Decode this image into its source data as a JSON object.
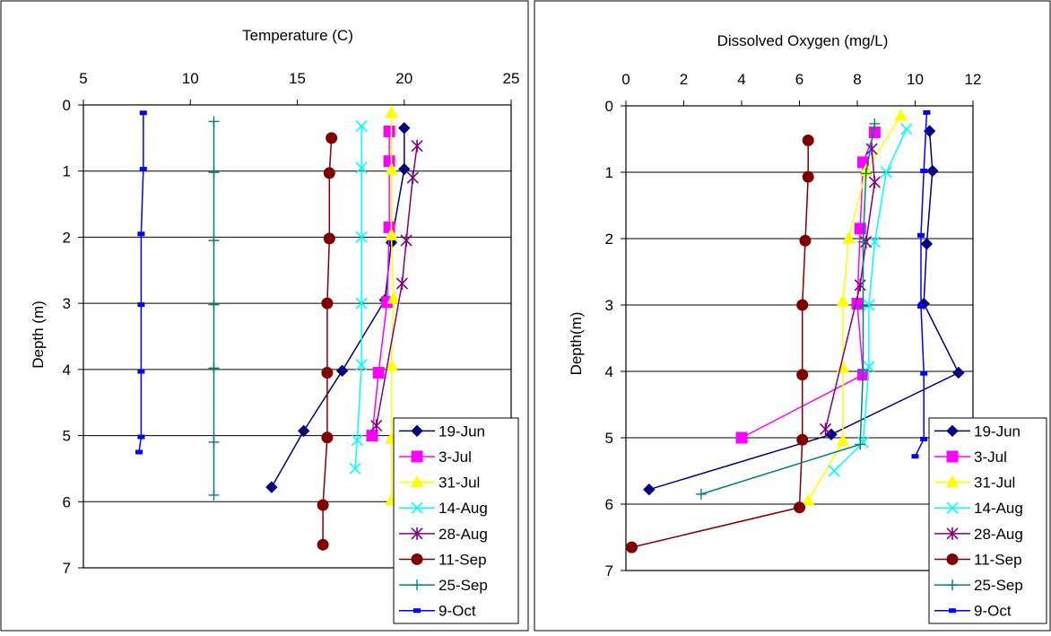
{
  "chart_data": [
    {
      "type": "line",
      "title": "Temperature (C)",
      "xlabel": "",
      "ylabel": "Depth (m)",
      "xlim": [
        5,
        25
      ],
      "ylim": [
        0,
        7
      ],
      "xticks": [
        5,
        10,
        15,
        20,
        25
      ],
      "yticks": [
        0,
        1,
        2,
        3,
        4,
        5,
        6,
        7
      ],
      "y_inverted": true,
      "x_axis_position": "top",
      "grid": "horizontal",
      "legend_position": "bottom-right",
      "series": [
        {
          "name": "19-Jun",
          "color": "#000080",
          "marker": "diamond",
          "points": [
            [
              20.0,
              0.35
            ],
            [
              20.0,
              0.97
            ],
            [
              19.4,
              2.08
            ],
            [
              19.1,
              2.95
            ],
            [
              17.1,
              4.02
            ],
            [
              15.3,
              4.93
            ],
            [
              13.8,
              5.78
            ]
          ]
        },
        {
          "name": "3-Jul",
          "color": "#ff00ff",
          "marker": "square",
          "points": [
            [
              19.3,
              0.4
            ],
            [
              19.3,
              0.85
            ],
            [
              19.3,
              1.85
            ],
            [
              19.2,
              2.98
            ],
            [
              18.8,
              4.05
            ],
            [
              18.5,
              5.0
            ]
          ]
        },
        {
          "name": "31-Jul",
          "color": "#ffff00",
          "marker": "triangle",
          "points": [
            [
              19.4,
              0.12
            ],
            [
              19.4,
              0.98
            ],
            [
              19.4,
              1.97
            ],
            [
              19.5,
              2.93
            ],
            [
              19.4,
              3.95
            ],
            [
              19.4,
              5.05
            ],
            [
              19.4,
              5.98
            ]
          ]
        },
        {
          "name": "14-Aug",
          "color": "#00ffff",
          "marker": "x",
          "points": [
            [
              18.0,
              0.32
            ],
            [
              18.0,
              0.95
            ],
            [
              18.0,
              2.0
            ],
            [
              18.0,
              3.0
            ],
            [
              18.0,
              3.93
            ],
            [
              17.8,
              5.07
            ],
            [
              17.7,
              5.5
            ]
          ]
        },
        {
          "name": "28-Aug",
          "color": "#800080",
          "marker": "star",
          "points": [
            [
              20.6,
              0.62
            ],
            [
              20.4,
              1.1
            ],
            [
              20.1,
              2.05
            ],
            [
              19.9,
              2.7
            ],
            [
              18.7,
              4.85
            ]
          ]
        },
        {
          "name": "11-Sep",
          "color": "#800000",
          "marker": "circle",
          "points": [
            [
              16.6,
              0.5
            ],
            [
              16.5,
              1.03
            ],
            [
              16.5,
              2.02
            ],
            [
              16.4,
              3.0
            ],
            [
              16.4,
              4.05
            ],
            [
              16.4,
              5.03
            ],
            [
              16.2,
              6.05
            ],
            [
              16.2,
              6.65
            ]
          ]
        },
        {
          "name": "25-Sep",
          "color": "#008080",
          "marker": "plus",
          "points": [
            [
              11.1,
              0.25
            ],
            [
              11.1,
              1.02
            ],
            [
              11.1,
              2.05
            ],
            [
              11.1,
              3.02
            ],
            [
              11.1,
              3.98
            ],
            [
              11.1,
              5.1
            ],
            [
              11.1,
              5.9
            ]
          ]
        },
        {
          "name": "9-Oct",
          "color": "#0000ff",
          "marker": "dash",
          "points": [
            [
              7.8,
              0.12
            ],
            [
              7.8,
              0.97
            ],
            [
              7.7,
              1.95
            ],
            [
              7.7,
              3.02
            ],
            [
              7.7,
              4.03
            ],
            [
              7.7,
              5.02
            ],
            [
              7.6,
              5.25
            ]
          ]
        }
      ]
    },
    {
      "type": "line",
      "title": "Dissolved Oxygen (mg/L)",
      "xlabel": "",
      "ylabel": "Depth(m)",
      "xlim": [
        0,
        12
      ],
      "ylim": [
        0,
        7
      ],
      "xticks": [
        0,
        2,
        4,
        6,
        8,
        10,
        12
      ],
      "yticks": [
        0,
        1,
        2,
        3,
        4,
        5,
        6,
        7
      ],
      "y_inverted": true,
      "x_axis_position": "top",
      "grid": "horizontal",
      "legend_position": "bottom-right",
      "series": [
        {
          "name": "19-Jun",
          "color": "#000080",
          "marker": "diamond",
          "points": [
            [
              10.5,
              0.38
            ],
            [
              10.6,
              0.98
            ],
            [
              10.4,
              2.08
            ],
            [
              10.3,
              2.98
            ],
            [
              11.5,
              4.02
            ],
            [
              7.1,
              4.95
            ],
            [
              0.8,
              5.78
            ]
          ]
        },
        {
          "name": "3-Jul",
          "color": "#ff00ff",
          "marker": "square",
          "points": [
            [
              8.6,
              0.4
            ],
            [
              8.2,
              0.85
            ],
            [
              8.1,
              1.85
            ],
            [
              8.0,
              2.98
            ],
            [
              8.2,
              4.05
            ],
            [
              4.0,
              5.0
            ]
          ]
        },
        {
          "name": "31-Jul",
          "color": "#ffff00",
          "marker": "triangle",
          "points": [
            [
              9.5,
              0.15
            ],
            [
              8.3,
              0.98
            ],
            [
              7.7,
              2.0
            ],
            [
              7.5,
              2.95
            ],
            [
              7.5,
              3.95
            ],
            [
              7.5,
              5.05
            ],
            [
              6.3,
              5.95
            ]
          ]
        },
        {
          "name": "14-Aug",
          "color": "#00ffff",
          "marker": "x",
          "points": [
            [
              9.7,
              0.35
            ],
            [
              9.0,
              1.0
            ],
            [
              8.6,
              2.05
            ],
            [
              8.4,
              3.0
            ],
            [
              8.4,
              3.93
            ],
            [
              8.2,
              5.07
            ],
            [
              7.2,
              5.5
            ]
          ]
        },
        {
          "name": "28-Aug",
          "color": "#800080",
          "marker": "star",
          "points": [
            [
              8.5,
              0.65
            ],
            [
              8.6,
              1.15
            ],
            [
              8.3,
              2.05
            ],
            [
              8.1,
              2.7
            ],
            [
              6.9,
              4.87
            ]
          ]
        },
        {
          "name": "11-Sep",
          "color": "#800000",
          "marker": "circle",
          "points": [
            [
              6.3,
              0.52
            ],
            [
              6.3,
              1.07
            ],
            [
              6.2,
              2.03
            ],
            [
              6.1,
              3.0
            ],
            [
              6.1,
              4.05
            ],
            [
              6.1,
              5.03
            ],
            [
              6.0,
              6.05
            ],
            [
              0.2,
              6.65
            ]
          ]
        },
        {
          "name": "25-Sep",
          "color": "#008080",
          "marker": "plus",
          "points": [
            [
              8.6,
              0.27
            ],
            [
              8.3,
              1.02
            ],
            [
              8.2,
              2.05
            ],
            [
              8.2,
              3.02
            ],
            [
              8.2,
              3.98
            ],
            [
              8.1,
              5.1
            ],
            [
              2.6,
              5.85
            ]
          ]
        },
        {
          "name": "9-Oct",
          "color": "#0000ff",
          "marker": "dash",
          "points": [
            [
              10.4,
              0.1
            ],
            [
              10.3,
              0.98
            ],
            [
              10.2,
              1.95
            ],
            [
              10.2,
              3.02
            ],
            [
              10.3,
              4.03
            ],
            [
              10.3,
              5.02
            ],
            [
              10.0,
              5.28
            ]
          ]
        }
      ]
    }
  ]
}
